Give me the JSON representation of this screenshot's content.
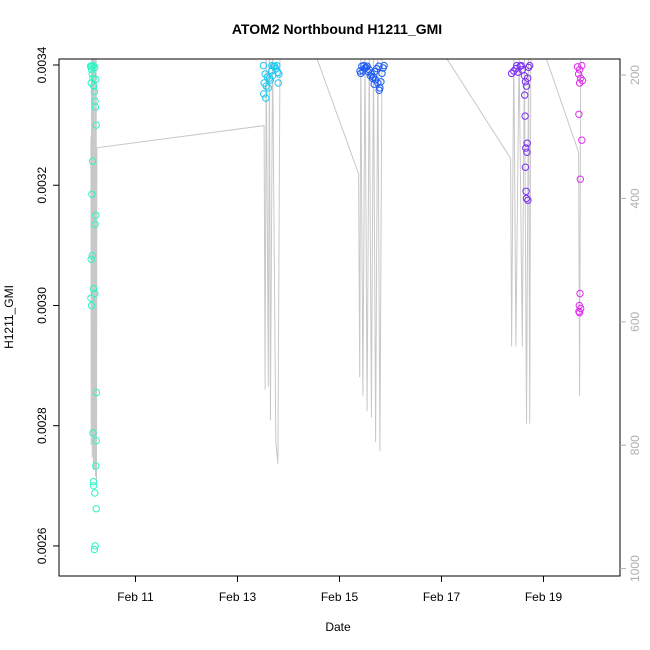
{
  "chart_data": {
    "type": "scatter",
    "title": "ATOM2 Northbound H1211_GMI",
    "xlabel": "Date",
    "ylabel": "H1211_GMI",
    "xlim": [
      "2024-02-09T12:00",
      "2024-02-20T12:00"
    ],
    "ylim": [
      0.00255,
      0.00341
    ],
    "y2lim": [
      1012,
      174
    ],
    "x_ticks": [
      {
        "value": "2024-02-11T00:00",
        "label": "Feb 11"
      },
      {
        "value": "2024-02-13T00:00",
        "label": "Feb 13"
      },
      {
        "value": "2024-02-15T00:00",
        "label": "Feb 15"
      },
      {
        "value": "2024-02-17T00:00",
        "label": "Feb 17"
      },
      {
        "value": "2024-02-19T00:00",
        "label": "Feb 19"
      }
    ],
    "y_ticks": [
      {
        "value": 0.0026,
        "label": "0.0026"
      },
      {
        "value": 0.0028,
        "label": "0.0028"
      },
      {
        "value": 0.003,
        "label": "0.0030"
      },
      {
        "value": 0.0032,
        "label": "0.0032"
      },
      {
        "value": 0.0034,
        "label": "0.0034"
      }
    ],
    "y2_ticks": [
      {
        "value": 200,
        "label": "200"
      },
      {
        "value": 400,
        "label": "400"
      },
      {
        "value": 600,
        "label": "600"
      },
      {
        "value": 800,
        "label": "800"
      },
      {
        "value": 1000,
        "label": "1000"
      }
    ],
    "grid": false,
    "colors": {
      "group1": "#2bf5c4",
      "group2": "#1ec8f0",
      "group3": "#1e5cf5",
      "group4": "#7a2cf5",
      "group5": "#e22cf0",
      "secondary_line": "#c8c8c8",
      "axis": "#000000",
      "secondary_axis": "#b0b0b0"
    },
    "series": [
      {
        "color": "#2bf5c4",
        "points": [
          [
            "2024-02-10T03:00",
            0.003398
          ],
          [
            "2024-02-10T03:20",
            0.003392
          ],
          [
            "2024-02-10T03:40",
            0.003385
          ],
          [
            "2024-02-10T04:00",
            0.003378
          ],
          [
            "2024-02-10T03:10",
            0.00337
          ],
          [
            "2024-02-10T04:20",
            0.003365
          ],
          [
            "2024-02-10T04:40",
            0.003356
          ],
          [
            "2024-02-10T05:00",
            0.00334
          ],
          [
            "2024-02-10T05:10",
            0.00333
          ],
          [
            "2024-02-10T05:30",
            0.0033
          ],
          [
            "2024-02-10T02:50",
            0.003398
          ],
          [
            "2024-02-10T04:50",
            0.003396
          ],
          [
            "2024-02-10T05:20",
            0.003376
          ],
          [
            "2024-02-10T03:30",
            0.003398
          ],
          [
            "2024-02-10T04:10",
            0.003399
          ],
          [
            "2024-02-10T03:50",
            0.00324
          ],
          [
            "2024-02-10T03:30",
            0.003185
          ],
          [
            "2024-02-10T05:20",
            0.00315
          ],
          [
            "2024-02-10T05:00",
            0.003135
          ],
          [
            "2024-02-10T03:10",
            0.003077
          ],
          [
            "2024-02-10T03:40",
            0.003083
          ],
          [
            "2024-02-10T04:10",
            0.003028
          ],
          [
            "2024-02-10T04:50",
            0.00302
          ],
          [
            "2024-02-10T03:00",
            0.003012
          ],
          [
            "2024-02-10T03:20",
            0.003
          ],
          [
            "2024-02-10T05:40",
            0.002855
          ],
          [
            "2024-02-10T04:00",
            0.002788
          ],
          [
            "2024-02-10T05:30",
            0.002775
          ],
          [
            "2024-02-10T05:20",
            0.002733
          ],
          [
            "2024-02-10T04:10",
            0.002707
          ],
          [
            "2024-02-10T04:20",
            0.0027
          ],
          [
            "2024-02-10T04:50",
            0.002688
          ],
          [
            "2024-02-10T05:30",
            0.002662
          ],
          [
            "2024-02-10T05:00",
            0.0026
          ],
          [
            "2024-02-10T04:40",
            0.002594
          ]
        ]
      },
      {
        "color": "#1ec8f0",
        "points": [
          [
            "2024-02-13T13:00",
            0.003385
          ],
          [
            "2024-02-13T14:00",
            0.00338
          ],
          [
            "2024-02-13T15:00",
            0.003378
          ],
          [
            "2024-02-13T16:00",
            0.00339
          ],
          [
            "2024-02-13T17:00",
            0.003398
          ],
          [
            "2024-02-13T18:00",
            0.003394
          ],
          [
            "2024-02-13T19:00",
            0.003388
          ],
          [
            "2024-02-13T12:30",
            0.00337
          ],
          [
            "2024-02-13T13:30",
            0.003365
          ],
          [
            "2024-02-13T14:30",
            0.003362
          ],
          [
            "2024-02-13T15:30",
            0.003375
          ],
          [
            "2024-02-13T16:30",
            0.003382
          ],
          [
            "2024-02-13T17:30",
            0.003398
          ],
          [
            "2024-02-13T18:30",
            0.003399
          ],
          [
            "2024-02-13T19:30",
            0.003385
          ],
          [
            "2024-02-13T12:20",
            0.003352
          ],
          [
            "2024-02-13T13:20",
            0.003345
          ],
          [
            "2024-02-13T19:10",
            0.00337
          ],
          [
            "2024-02-13T12:10",
            0.003399
          ],
          [
            "2024-02-13T16:10",
            0.003399
          ]
        ]
      },
      {
        "color": "#1e5cf5",
        "points": [
          [
            "2024-02-15T10:00",
            0.003386
          ],
          [
            "2024-02-15T11:00",
            0.00339
          ],
          [
            "2024-02-15T12:00",
            0.003395
          ],
          [
            "2024-02-15T13:00",
            0.003398
          ],
          [
            "2024-02-15T14:00",
            0.003392
          ],
          [
            "2024-02-15T15:00",
            0.003385
          ],
          [
            "2024-02-15T16:00",
            0.00338
          ],
          [
            "2024-02-15T17:00",
            0.003375
          ],
          [
            "2024-02-15T18:00",
            0.00337
          ],
          [
            "2024-02-15T19:00",
            0.003362
          ],
          [
            "2024-02-15T19:30",
            0.003372
          ],
          [
            "2024-02-15T10:30",
            0.003398
          ],
          [
            "2024-02-15T11:30",
            0.003399
          ],
          [
            "2024-02-15T12:30",
            0.003396
          ],
          [
            "2024-02-15T13:30",
            0.003389
          ],
          [
            "2024-02-15T14:30",
            0.003382
          ],
          [
            "2024-02-15T15:30",
            0.003378
          ],
          [
            "2024-02-15T16:30",
            0.003389
          ],
          [
            "2024-02-15T17:30",
            0.003394
          ],
          [
            "2024-02-15T18:30",
            0.003398
          ],
          [
            "2024-02-15T20:00",
            0.003386
          ],
          [
            "2024-02-15T20:30",
            0.003395
          ],
          [
            "2024-02-15T21:00",
            0.003399
          ],
          [
            "2024-02-15T09:40",
            0.00339
          ],
          [
            "2024-02-15T16:20",
            0.003368
          ],
          [
            "2024-02-15T18:40",
            0.003358
          ]
        ]
      },
      {
        "color": "#7a2cf5",
        "points": [
          [
            "2024-02-18T09:00",
            0.003386
          ],
          [
            "2024-02-18T10:00",
            0.00339
          ],
          [
            "2024-02-18T11:00",
            0.003394
          ],
          [
            "2024-02-18T12:00",
            0.003388
          ],
          [
            "2024-02-18T13:00",
            0.003398
          ],
          [
            "2024-02-18T14:00",
            0.003392
          ],
          [
            "2024-02-18T15:00",
            0.003382
          ],
          [
            "2024-02-18T15:30",
            0.003372
          ],
          [
            "2024-02-18T16:00",
            0.003365
          ],
          [
            "2024-02-18T16:30",
            0.003378
          ],
          [
            "2024-02-18T17:00",
            0.003396
          ],
          [
            "2024-02-18T17:30",
            0.003399
          ],
          [
            "2024-02-18T11:30",
            0.003399
          ],
          [
            "2024-02-18T13:30",
            0.003399
          ],
          [
            "2024-02-18T15:10",
            0.00335
          ],
          [
            "2024-02-18T15:20",
            0.003315
          ],
          [
            "2024-02-18T16:20",
            0.00327
          ],
          [
            "2024-02-18T15:40",
            0.003262
          ],
          [
            "2024-02-18T16:10",
            0.003255
          ],
          [
            "2024-02-18T15:30",
            0.00323
          ],
          [
            "2024-02-18T15:50",
            0.00319
          ],
          [
            "2024-02-18T16:40",
            0.003175
          ],
          [
            "2024-02-18T16:00",
            0.003178
          ]
        ]
      },
      {
        "color": "#e22cf0",
        "points": [
          [
            "2024-02-19T16:00",
            0.003397
          ],
          [
            "2024-02-19T17:00",
            0.003392
          ],
          [
            "2024-02-19T18:00",
            0.003399
          ],
          [
            "2024-02-19T16:30",
            0.003385
          ],
          [
            "2024-02-19T17:30",
            0.003378
          ],
          [
            "2024-02-19T18:20",
            0.003374
          ],
          [
            "2024-02-19T17:00",
            0.00337
          ],
          [
            "2024-02-19T16:40",
            0.003318
          ],
          [
            "2024-02-19T18:00",
            0.003275
          ],
          [
            "2024-02-19T17:20",
            0.00321
          ],
          [
            "2024-02-19T17:10",
            0.00302
          ],
          [
            "2024-02-19T16:50",
            0.003
          ],
          [
            "2024-02-19T17:30",
            0.002995
          ],
          [
            "2024-02-19T16:40",
            0.00299
          ],
          [
            "2024-02-19T17:00",
            0.002988
          ]
        ]
      }
    ],
    "secondary_line": {
      "color": "#c8c8c8",
      "points": [
        [
          "2024-02-10T03:00",
          300
        ],
        [
          "2024-02-10T03:10",
          800
        ],
        [
          "2024-02-10T03:20",
          160
        ],
        [
          "2024-02-10T03:40",
          820
        ],
        [
          "2024-02-10T03:50",
          160
        ],
        [
          "2024-02-10T04:10",
          840
        ],
        [
          "2024-02-10T04:20",
          160
        ],
        [
          "2024-02-10T04:40",
          840
        ],
        [
          "2024-02-10T05:00",
          160
        ],
        [
          "2024-02-10T05:10",
          850
        ],
        [
          "2024-02-10T05:30",
          160
        ],
        [
          "2024-02-10T05:40",
          860
        ],
        [
          "2024-02-10T05:50",
          318
        ],
        [
          "2024-02-13T12:30",
          282
        ],
        [
          "2024-02-13T13:00",
          710
        ],
        [
          "2024-02-13T13:30",
          160
        ],
        [
          "2024-02-13T14:30",
          705
        ],
        [
          "2024-02-13T15:00",
          160
        ],
        [
          "2024-02-13T15:30",
          760
        ],
        [
          "2024-02-13T16:30",
          160
        ],
        [
          "2024-02-13T18:00",
          795
        ],
        [
          "2024-02-13T19:00",
          830
        ],
        [
          "2024-02-13T20:00",
          160
        ],
        [
          "2024-02-14T12:00",
          160
        ],
        [
          "2024-02-15T09:00",
          360
        ],
        [
          "2024-02-15T09:30",
          690
        ],
        [
          "2024-02-15T10:00",
          160
        ],
        [
          "2024-02-15T11:00",
          720
        ],
        [
          "2024-02-15T12:00",
          160
        ],
        [
          "2024-02-15T13:00",
          745
        ],
        [
          "2024-02-15T14:00",
          160
        ],
        [
          "2024-02-15T15:00",
          755
        ],
        [
          "2024-02-15T16:00",
          160
        ],
        [
          "2024-02-15T17:00",
          795
        ],
        [
          "2024-02-15T18:00",
          160
        ],
        [
          "2024-02-15T19:00",
          810
        ],
        [
          "2024-02-15T20:00",
          160
        ],
        [
          "2024-02-15T21:00",
          160
        ],
        [
          "2024-02-16T12:00",
          160
        ],
        [
          "2024-02-17T00:00",
          160
        ],
        [
          "2024-02-18T08:30",
          335
        ],
        [
          "2024-02-18T09:00",
          640
        ],
        [
          "2024-02-18T10:00",
          160
        ],
        [
          "2024-02-18T11:00",
          640
        ],
        [
          "2024-02-18T12:30",
          160
        ],
        [
          "2024-02-18T14:00",
          640
        ],
        [
          "2024-02-18T15:00",
          160
        ],
        [
          "2024-02-18T16:00",
          765
        ],
        [
          "2024-02-18T17:00",
          160
        ],
        [
          "2024-02-18T17:30",
          765
        ],
        [
          "2024-02-18T18:00",
          160
        ],
        [
          "2024-02-19T00:00",
          160
        ],
        [
          "2024-02-19T16:30",
          325
        ],
        [
          "2024-02-19T17:00",
          720
        ],
        [
          "2024-02-19T17:30",
          160
        ]
      ]
    }
  }
}
